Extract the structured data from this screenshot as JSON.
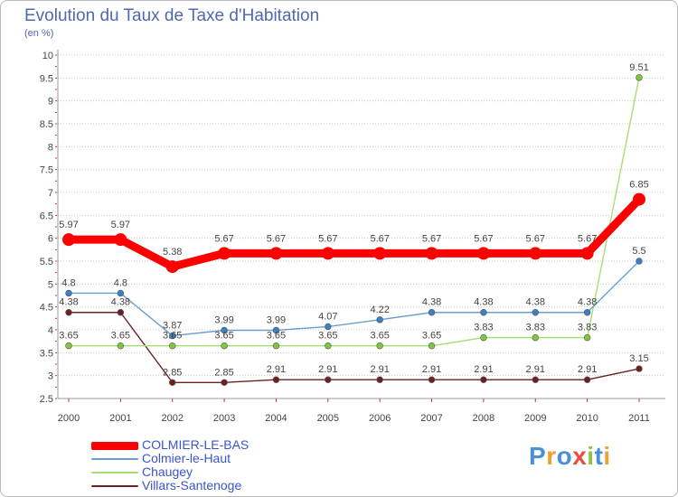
{
  "title": "Evolution du Taux de Taxe d'Habitation",
  "subtitle": "(en %)",
  "chart_data": {
    "type": "line",
    "title": "Evolution du Taux de Taxe d'Habitation",
    "subtitle": "(en %)",
    "xlabel": "",
    "ylabel": "(en %)",
    "categories": [
      "2000",
      "2001",
      "2002",
      "2003",
      "2004",
      "2005",
      "2006",
      "2007",
      "2008",
      "2009",
      "2010",
      "2011"
    ],
    "ylim": [
      2.5,
      10
    ],
    "yticks": [
      "2.5",
      "3",
      "3.5",
      "4",
      "4.5",
      "5",
      "5.5",
      "6",
      "6.5",
      "7",
      "7.5",
      "8",
      "8.5",
      "9",
      "9.5",
      "10"
    ],
    "grid": "horizontal dotted",
    "legend_position": "bottom-left",
    "series": [
      {
        "name": "COLMIER-LE-BAS",
        "color": "#ff0000",
        "thick": true,
        "values": [
          5.97,
          5.97,
          5.38,
          5.67,
          5.67,
          5.67,
          5.67,
          5.67,
          5.67,
          5.67,
          5.67,
          6.85
        ],
        "labels": [
          "5.97",
          "5.97",
          "5.38",
          "5.67",
          "5.67",
          "5.67",
          "5.67",
          "5.67",
          "5.67",
          "5.67",
          "5.67",
          "6.85"
        ]
      },
      {
        "name": "Colmier-le-Haut",
        "color": "#6a9fce",
        "marker": "#3b7fc4",
        "thick": false,
        "values": [
          4.8,
          4.8,
          3.87,
          3.99,
          3.99,
          4.07,
          4.22,
          4.38,
          4.38,
          4.38,
          4.38,
          5.5
        ],
        "labels": [
          "4.8",
          "4.8",
          "3.87",
          "3.99",
          "3.99",
          "4.07",
          "4.22",
          "4.38",
          "4.38",
          "4.38",
          "4.38",
          "5.5"
        ]
      },
      {
        "name": "Chaugey",
        "color": "#a6df74",
        "marker": "#7dc83c",
        "thick": false,
        "values": [
          3.65,
          3.65,
          3.65,
          3.65,
          3.65,
          3.65,
          3.65,
          3.65,
          3.83,
          3.83,
          3.83,
          9.51
        ],
        "labels": [
          "3.65",
          "3.65",
          "3.65",
          "3.65",
          "3.65",
          "3.65",
          "3.65",
          "3.65",
          "3.83",
          "3.83",
          "3.83",
          "9.51"
        ]
      },
      {
        "name": "Villars-Santenoge",
        "color": "#6e2020",
        "marker": "#6e2020",
        "thick": false,
        "values": [
          4.38,
          4.38,
          2.85,
          2.85,
          2.91,
          2.91,
          2.91,
          2.91,
          2.91,
          2.91,
          2.91,
          3.15
        ],
        "labels": [
          "4.38",
          "4.38",
          "2.85",
          "2.85",
          "2.91",
          "2.91",
          "2.91",
          "2.91",
          "2.91",
          "2.91",
          "2.91",
          "3.15"
        ]
      }
    ]
  },
  "logo": {
    "text": "Proxiti",
    "letters": [
      {
        "ch": "P",
        "color": "#4a90d9"
      },
      {
        "ch": "r",
        "color": "#f0a030"
      },
      {
        "ch": "o",
        "color": "#4a90d9"
      },
      {
        "ch": "x",
        "color": "#e94b3c"
      },
      {
        "ch": "i",
        "color": "#8cc63f"
      },
      {
        "ch": "t",
        "color": "#4a90d9"
      },
      {
        "ch": "i",
        "color": "#f0a030"
      }
    ]
  }
}
